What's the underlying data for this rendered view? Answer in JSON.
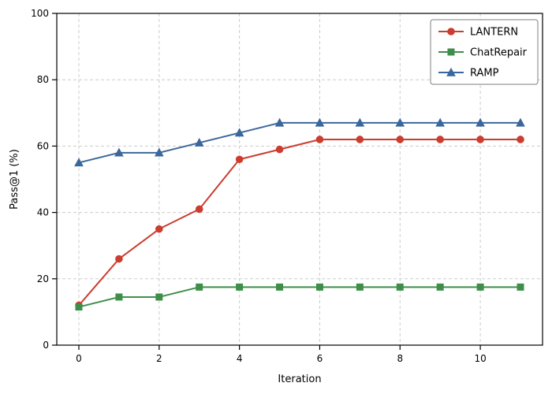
{
  "chart_data": {
    "type": "line",
    "x": [
      0,
      1,
      2,
      3,
      4,
      5,
      6,
      7,
      8,
      9,
      10,
      11
    ],
    "series": [
      {
        "name": "LANTERN",
        "color": "#cb3d2e",
        "marker": "circle",
        "values": [
          12,
          26,
          35,
          41,
          56,
          59,
          62,
          62,
          62,
          62,
          62,
          62
        ]
      },
      {
        "name": "ChatRepair",
        "color": "#3e8e49",
        "marker": "square",
        "values": [
          11.5,
          14.5,
          14.5,
          17.5,
          17.5,
          17.5,
          17.5,
          17.5,
          17.5,
          17.5,
          17.5,
          17.5
        ]
      },
      {
        "name": "RAMP",
        "color": "#3b679c",
        "marker": "triangle",
        "values": [
          55,
          58,
          58,
          61,
          64,
          67,
          67,
          67,
          67,
          67,
          67,
          67
        ]
      }
    ],
    "title": "",
    "xlabel": "Iteration",
    "ylabel": "Pass@1 (%)",
    "xlim": [
      -0.55,
      11.55
    ],
    "ylim": [
      0,
      100
    ],
    "xticks": [
      0,
      2,
      4,
      6,
      8,
      10
    ],
    "yticks": [
      0,
      20,
      40,
      60,
      80,
      100
    ],
    "grid": true,
    "grid_color": "#cccccc",
    "spine_color": "#000000",
    "legend_position": "upper right"
  }
}
